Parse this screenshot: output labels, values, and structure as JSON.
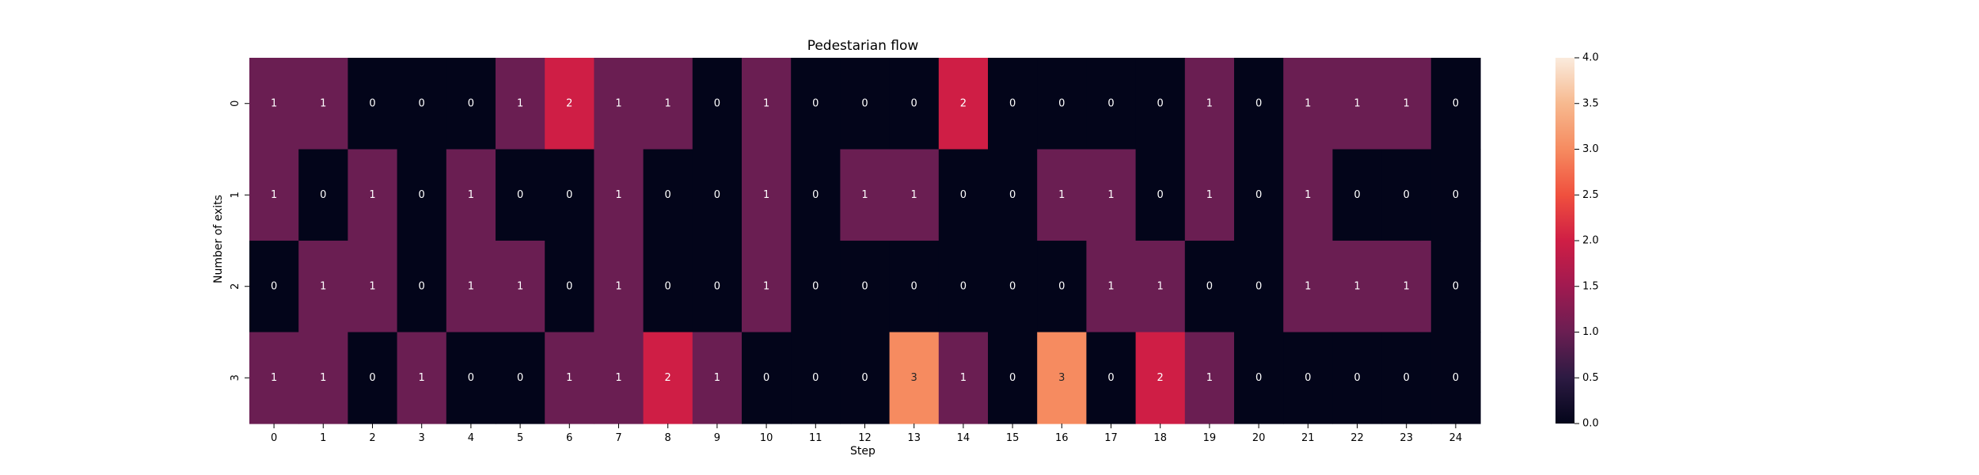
{
  "chart_data": {
    "type": "heatmap",
    "title": "Pedestarian flow",
    "xlabel": "Step",
    "ylabel": "Number of exits",
    "x_categories": [
      "0",
      "1",
      "2",
      "3",
      "4",
      "5",
      "6",
      "7",
      "8",
      "9",
      "10",
      "11",
      "12",
      "13",
      "14",
      "15",
      "16",
      "17",
      "18",
      "19",
      "20",
      "21",
      "22",
      "23",
      "24"
    ],
    "y_categories": [
      "0",
      "1",
      "2",
      "3"
    ],
    "values": [
      [
        1,
        1,
        0,
        0,
        0,
        1,
        2,
        1,
        1,
        0,
        1,
        0,
        0,
        0,
        2,
        0,
        0,
        0,
        0,
        1,
        0,
        1,
        1,
        1,
        0
      ],
      [
        1,
        0,
        1,
        0,
        1,
        0,
        0,
        1,
        0,
        0,
        1,
        0,
        1,
        1,
        0,
        0,
        1,
        1,
        0,
        1,
        0,
        1,
        0,
        0,
        0
      ],
      [
        0,
        1,
        1,
        0,
        1,
        1,
        0,
        1,
        0,
        0,
        1,
        0,
        0,
        0,
        0,
        0,
        0,
        1,
        1,
        0,
        0,
        1,
        1,
        1,
        0
      ],
      [
        1,
        1,
        0,
        1,
        0,
        0,
        1,
        1,
        2,
        1,
        0,
        0,
        0,
        3,
        1,
        0,
        3,
        0,
        2,
        1,
        0,
        0,
        0,
        0,
        0
      ]
    ],
    "colorbar": {
      "min": 0,
      "max": 4,
      "ticks": [
        "0.0",
        "0.5",
        "1.0",
        "1.5",
        "2.0",
        "2.5",
        "3.0",
        "3.5",
        "4.0"
      ],
      "colormap": "rocket"
    },
    "annotations": true,
    "grid": false
  }
}
